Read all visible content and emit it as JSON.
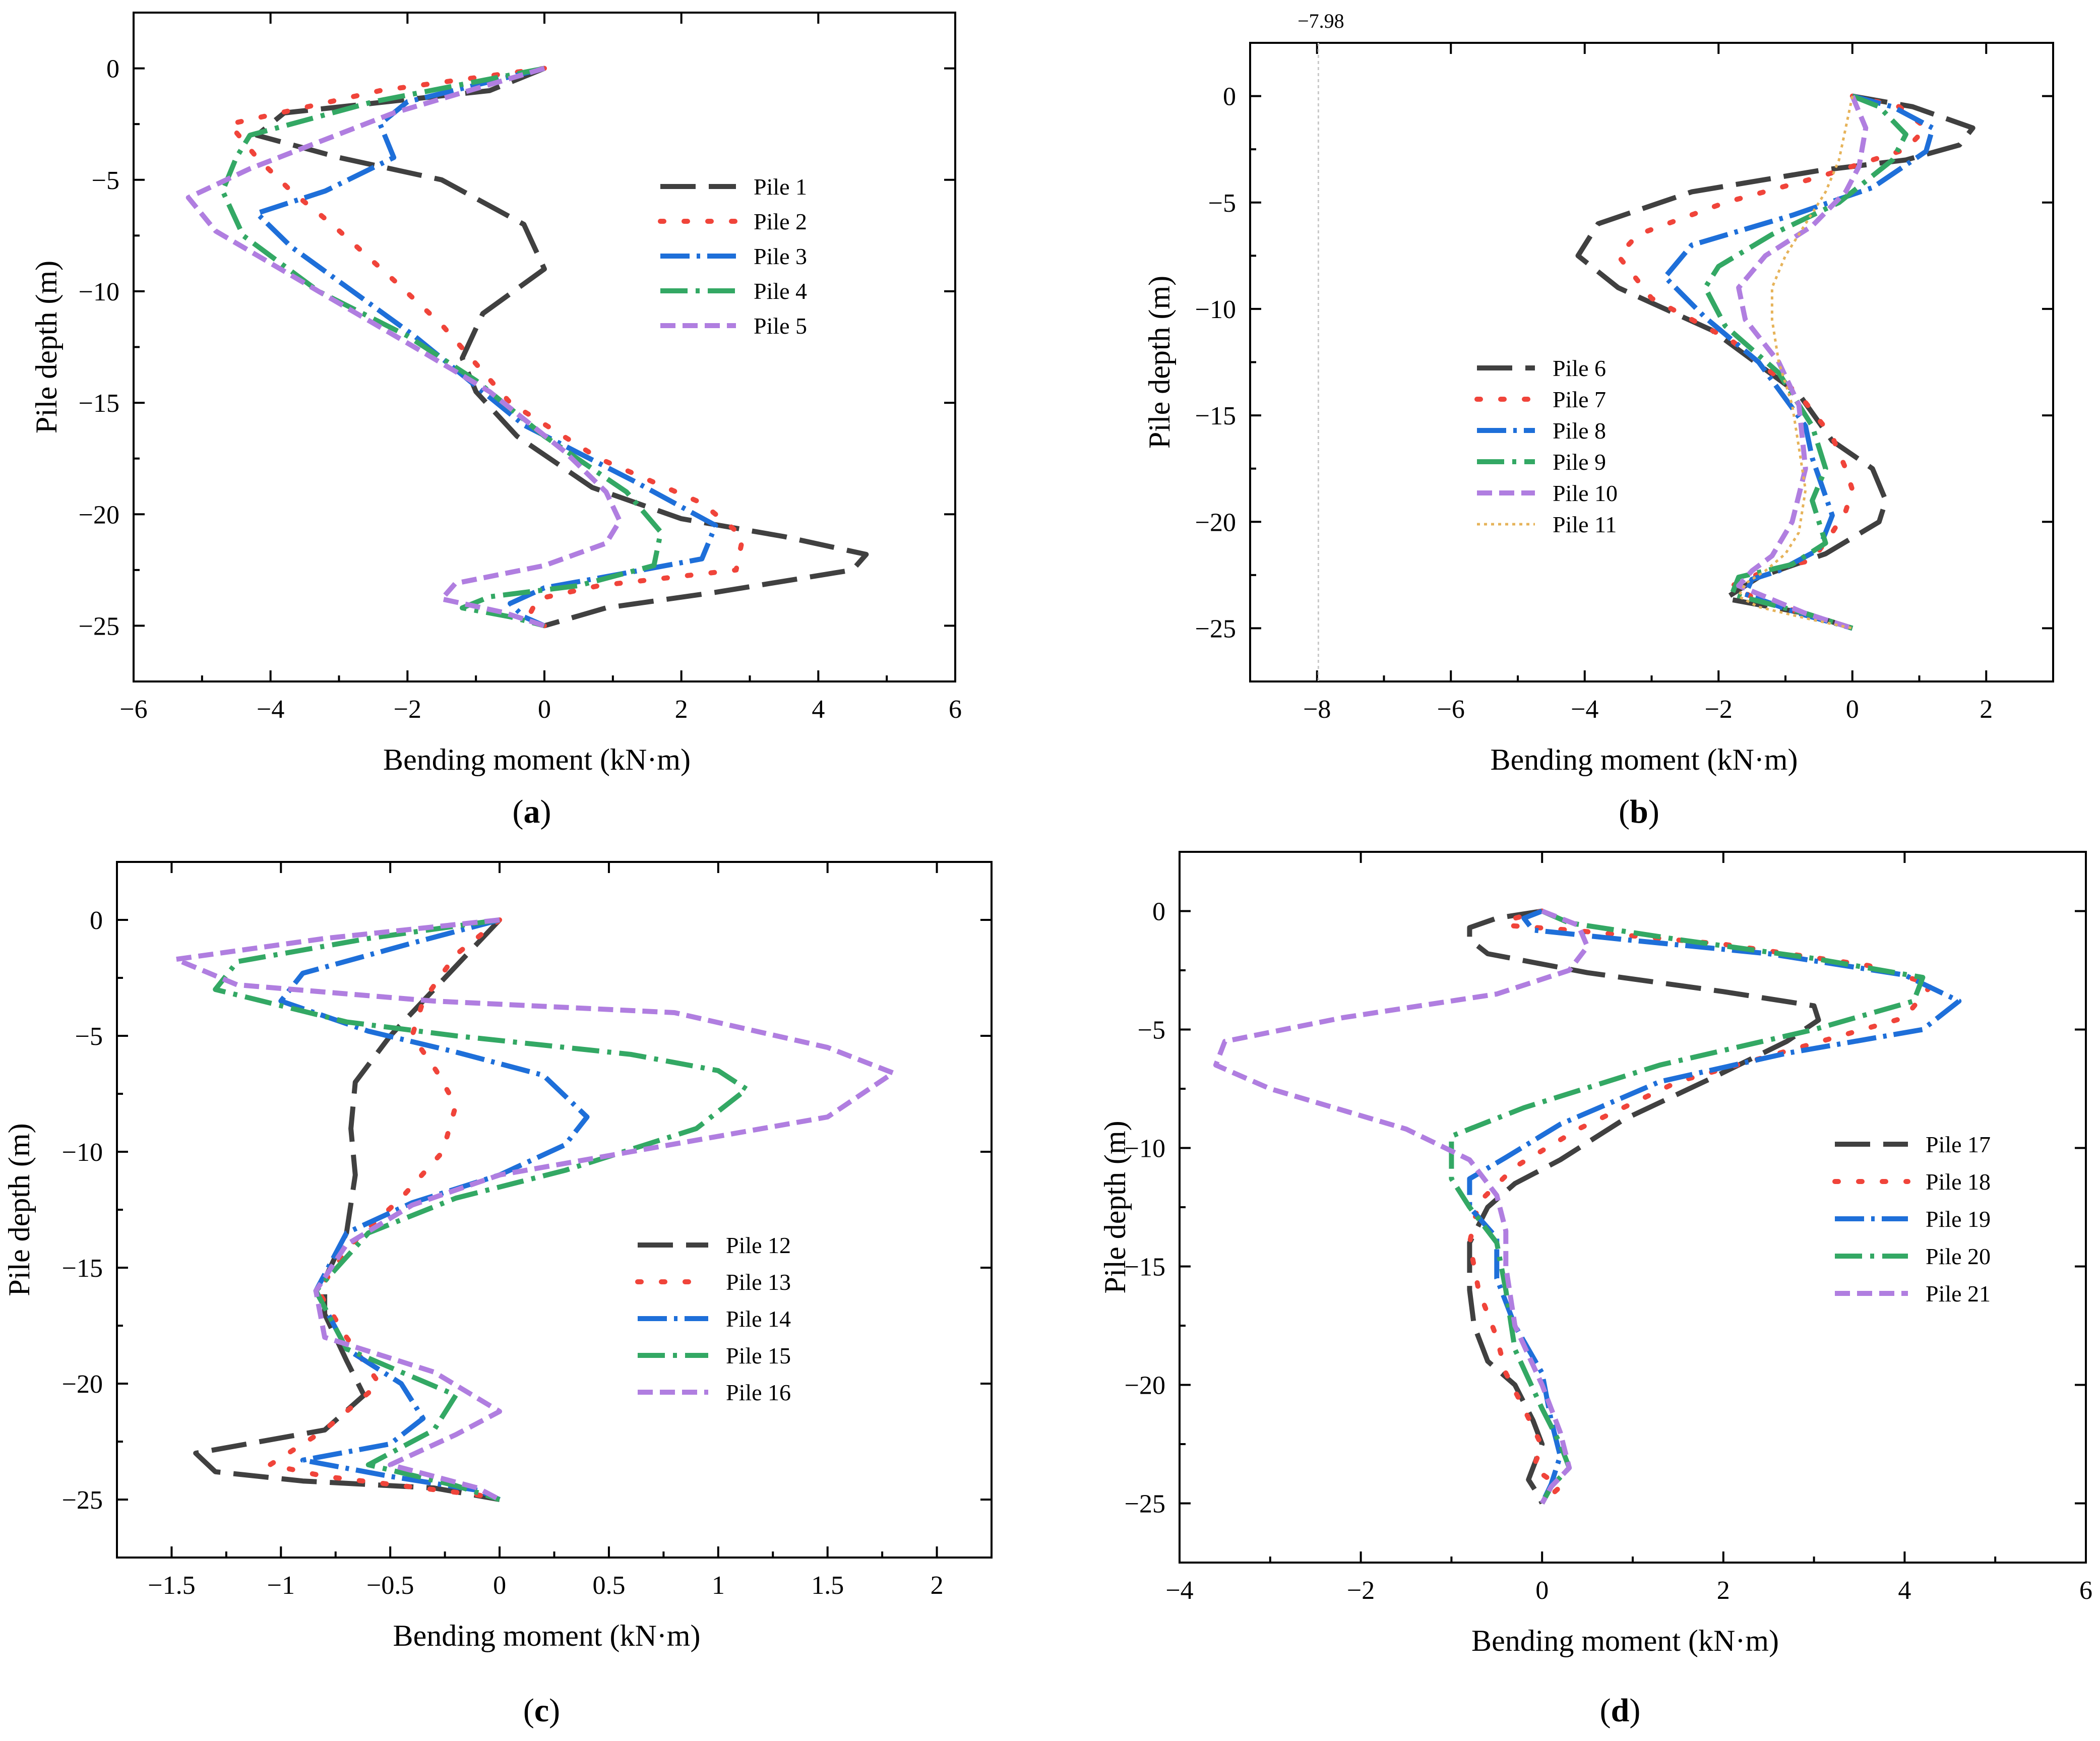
{
  "figure": {
    "captions": [
      "a",
      "b",
      "c",
      "d"
    ]
  },
  "styles": {
    "colors": [
      "#404040",
      "#f0443a",
      "#1e6fd9",
      "#33a864",
      "#b07ee0",
      "#e6b35a"
    ],
    "dashes": [
      "70,26",
      "7,40",
      "58,14,7,14",
      "54,16,8,16",
      "30,14",
      "6,8"
    ]
  },
  "chart_data": [
    {
      "type": "line",
      "panel": "a",
      "title": "",
      "xlabel": "Bending moment (kN·m)",
      "ylabel": "Pile depth (m)",
      "xlim": [
        -6,
        6
      ],
      "ylim": [
        -27.5,
        2.5
      ],
      "xticks": [
        -6,
        -4,
        -2,
        0,
        2,
        4,
        6
      ],
      "yticks": [
        0,
        -5,
        -10,
        -15,
        -20,
        -25
      ],
      "legend_position": "upper-center",
      "series": [
        {
          "name": "Pile 1",
          "x": [
            0,
            -0.8,
            -3.8,
            -4.2,
            -3.0,
            -1.5,
            -0.3,
            0,
            -0.9,
            -1.2,
            -1.0,
            -0.4,
            0.7,
            2.0,
            3.5,
            4.7,
            4.5,
            2.5,
            0.9,
            0
          ],
          "y": [
            0,
            -1,
            -2,
            -3,
            -4,
            -5,
            -7,
            -9,
            -11,
            -13,
            -14.5,
            -16.5,
            -18.8,
            -20.2,
            -21,
            -21.8,
            -22.5,
            -23.5,
            -24.2,
            -25
          ]
        },
        {
          "name": "Pile 2",
          "x": [
            0,
            -2.4,
            -4.6,
            -4.2,
            -3.7,
            -3.1,
            -2.2,
            -1.5,
            -0.5,
            0.8,
            2.3,
            2.9,
            2.8,
            0.8,
            -0.1,
            -0.2,
            0
          ],
          "y": [
            0,
            -1,
            -2.5,
            -4,
            -5.5,
            -7,
            -9.5,
            -11.5,
            -15,
            -17.5,
            -19.5,
            -21,
            -22.5,
            -23.2,
            -23.8,
            -24.4,
            -25
          ]
        },
        {
          "name": "Pile 3",
          "x": [
            0,
            -2.0,
            -2.4,
            -2.2,
            -3.2,
            -4.2,
            -3.7,
            -2.8,
            -1.9,
            -0.3,
            1.3,
            2.5,
            2.3,
            0.9,
            0,
            -0.5,
            -0.3,
            0
          ],
          "y": [
            0,
            -1.5,
            -2.5,
            -4,
            -5.5,
            -6.5,
            -8,
            -10,
            -12,
            -16,
            -18.5,
            -20.5,
            -22,
            -22.8,
            -23.3,
            -24,
            -24.6,
            -25
          ]
        },
        {
          "name": "Pile 4",
          "x": [
            0,
            -2.5,
            -4.3,
            -4.5,
            -4.7,
            -4.4,
            -3.3,
            -2.0,
            -1.0,
            0,
            1.2,
            1.7,
            1.6,
            0.5,
            -0.8,
            -1.2,
            -0.5,
            0
          ],
          "y": [
            0,
            -1.5,
            -3,
            -4,
            -5.5,
            -7.5,
            -10,
            -12,
            -14,
            -16.5,
            -19,
            -20.8,
            -22.3,
            -23.2,
            -23.7,
            -24.2,
            -24.6,
            -25
          ]
        },
        {
          "name": "Pile 5",
          "x": [
            0,
            -2.2,
            -4.3,
            -5.2,
            -4.8,
            -3.3,
            -1.9,
            -0.8,
            0.3,
            0.9,
            1.1,
            0.9,
            0,
            -1.3,
            -1.5,
            -0.6,
            0
          ],
          "y": [
            0,
            -2,
            -4.5,
            -5.8,
            -7.3,
            -10,
            -12.5,
            -14.5,
            -17.2,
            -19,
            -20.3,
            -21.3,
            -22.3,
            -23.1,
            -23.8,
            -24.4,
            -25
          ]
        }
      ]
    },
    {
      "type": "line",
      "panel": "b",
      "title": "",
      "xlabel": "Bending moment (kN·m)",
      "ylabel": "Pile depth (m)",
      "xlim": [
        -9,
        3
      ],
      "ylim": [
        -27.5,
        2.5
      ],
      "xticks": [
        -8,
        -6,
        -4,
        -2,
        0,
        2
      ],
      "yticks": [
        0,
        -5,
        -10,
        -15,
        -20,
        -25
      ],
      "legend_position": "center-left",
      "annotation": {
        "text": "−7.98",
        "x": -7.98
      },
      "series": [
        {
          "name": "Pile 6",
          "x": [
            0,
            0.9,
            1.8,
            1.6,
            0.8,
            -0.5,
            -2.4,
            -3.8,
            -4.1,
            -3.5,
            -2.1,
            -0.8,
            -0.3,
            0.3,
            0.5,
            0.4,
            -0.4,
            -1.4,
            -1.9,
            -0.7,
            0
          ],
          "y": [
            0,
            -0.5,
            -1.5,
            -2.3,
            -3,
            -3.5,
            -4.5,
            -6,
            -7.5,
            -9,
            -11,
            -14,
            -16.2,
            -17.5,
            -19,
            -20,
            -21.5,
            -22.6,
            -23.6,
            -24.3,
            -25
          ]
        },
        {
          "name": "Pile 7",
          "x": [
            0,
            0.7,
            1.1,
            0.8,
            -0.5,
            -1.9,
            -3.2,
            -3.5,
            -3.0,
            -1.8,
            -0.8,
            -0.3,
            -0.1,
            0,
            -0.1,
            -0.3,
            -0.6,
            -1.3,
            -1.8,
            -1.4,
            -0.6,
            0
          ],
          "y": [
            0,
            -0.5,
            -1.5,
            -2.5,
            -3.8,
            -5,
            -6.5,
            -7.5,
            -9.5,
            -11.5,
            -14,
            -16,
            -17.5,
            -18.5,
            -19.5,
            -20.5,
            -21.8,
            -22.3,
            -23,
            -23.7,
            -24.4,
            -25
          ]
        },
        {
          "name": "Pile 8",
          "x": [
            0,
            0.6,
            1.2,
            1.1,
            0.3,
            -0.9,
            -2.4,
            -2.8,
            -2.2,
            -1.4,
            -0.7,
            -0.6,
            -0.3,
            -0.5,
            -1.1,
            -1.5,
            -1.6,
            -0.8,
            0
          ],
          "y": [
            0,
            -0.5,
            -1.5,
            -2.6,
            -4.3,
            -5.6,
            -7,
            -8.5,
            -10.4,
            -12.5,
            -15.5,
            -17,
            -19.7,
            -21.3,
            -22.3,
            -22.7,
            -23.4,
            -24.3,
            -25
          ]
        },
        {
          "name": "Pile 9",
          "x": [
            0,
            0.4,
            0.8,
            0.6,
            -0.2,
            -1.2,
            -2.0,
            -2.2,
            -1.9,
            -1.1,
            -0.6,
            -0.4,
            -0.6,
            -0.4,
            -0.9,
            -1.7,
            -1.8,
            -0.7,
            0
          ],
          "y": [
            0,
            -0.5,
            -1.8,
            -3,
            -5,
            -6.5,
            -8,
            -9,
            -10.8,
            -13,
            -15.5,
            -17.5,
            -19,
            -21,
            -22,
            -22.6,
            -23.4,
            -24.3,
            -25
          ]
        },
        {
          "name": "Pile 10",
          "x": [
            0,
            0.2,
            0.1,
            -0.1,
            -0.6,
            -1.3,
            -1.7,
            -1.6,
            -1.1,
            -0.8,
            -0.7,
            -0.9,
            -1.2,
            -1.5,
            -1.7,
            -0.7,
            0
          ],
          "y": [
            0,
            -1.5,
            -3.3,
            -4.5,
            -6.1,
            -7.5,
            -9,
            -10.5,
            -12.5,
            -14.5,
            -17.5,
            -20,
            -21.6,
            -22.3,
            -23,
            -24.3,
            -25
          ]
        },
        {
          "name": "Pile 11",
          "x": [
            0,
            -0.1,
            -0.2,
            -0.4,
            -0.7,
            -1.0,
            -1.2,
            -1.2,
            -1.1,
            -0.9,
            -0.8,
            -0.7,
            -0.8,
            -1.0,
            -1.3,
            -1.6,
            -1.7,
            -1.4,
            -0.6,
            0
          ],
          "y": [
            0,
            -1.5,
            -3,
            -4.5,
            -6,
            -7.5,
            -9,
            -10.5,
            -12.5,
            -14.5,
            -16.5,
            -18.5,
            -20.5,
            -21.5,
            -22.3,
            -22.9,
            -23.5,
            -24,
            -24.6,
            -25
          ]
        }
      ]
    },
    {
      "type": "line",
      "panel": "c",
      "title": "",
      "xlabel": "Bending moment (kN·m)",
      "ylabel": "Pile depth (m)",
      "xlim": [
        -1.75,
        2.25
      ],
      "ylim": [
        -27.5,
        2.5
      ],
      "xticks": [
        -1.5,
        -1.0,
        -0.5,
        0.0,
        0.5,
        1.0,
        1.5,
        2.0
      ],
      "yticks": [
        0,
        -5,
        -10,
        -15,
        -20,
        -25
      ],
      "legend_position": "lower-right",
      "series": [
        {
          "name": "Pile 12",
          "x": [
            0,
            -0.1,
            -0.3,
            -0.5,
            -0.66,
            -0.68,
            -0.66,
            -0.7,
            -0.8,
            -0.8,
            -0.7,
            -0.62,
            -0.8,
            -1.39,
            -1.3,
            -0.9,
            -0.3,
            0
          ],
          "y": [
            0,
            -1,
            -3,
            -5,
            -7,
            -9,
            -11,
            -13.5,
            -15.5,
            -17,
            -19,
            -20.5,
            -22,
            -23,
            -23.8,
            -24.2,
            -24.5,
            -25
          ]
        },
        {
          "name": "Pile 13",
          "x": [
            0,
            -0.2,
            -0.35,
            -0.4,
            -0.29,
            -0.2,
            -0.26,
            -0.45,
            -0.68,
            -0.83,
            -0.7,
            -0.55,
            -0.8,
            -1.05,
            -0.8,
            -0.45,
            -0.1,
            0
          ],
          "y": [
            0,
            -1.5,
            -3.5,
            -5,
            -6.5,
            -8,
            -10,
            -12,
            -14,
            -16,
            -18,
            -20,
            -22,
            -23.5,
            -24,
            -24.4,
            -24.8,
            -25
          ]
        },
        {
          "name": "Pile 14",
          "x": [
            0,
            -0.4,
            -0.9,
            -1.0,
            -0.6,
            -0.2,
            0.2,
            0.4,
            0.3,
            0.0,
            -0.4,
            -0.7,
            -0.84,
            -0.7,
            -0.45,
            -0.35,
            -0.5,
            -0.9,
            -0.5,
            -0.1,
            0
          ],
          "y": [
            0,
            -1,
            -2.3,
            -3.5,
            -4.8,
            -5.7,
            -6.7,
            -8.5,
            -9.7,
            -11,
            -12.2,
            -13.5,
            -16,
            -18.5,
            -20,
            -21.5,
            -22.6,
            -23.3,
            -24,
            -24.6,
            -25
          ]
        },
        {
          "name": "Pile 15",
          "x": [
            0,
            -0.6,
            -1.2,
            -1.3,
            -0.7,
            -0.2,
            0.6,
            1.0,
            1.13,
            0.9,
            0.3,
            -0.2,
            -0.6,
            -0.84,
            -0.7,
            -0.2,
            -0.3,
            -0.6,
            -0.2,
            0
          ],
          "y": [
            0,
            -0.8,
            -1.8,
            -3,
            -4.4,
            -5,
            -5.8,
            -6.5,
            -7.3,
            -9,
            -10.8,
            -12,
            -13.5,
            -16,
            -18.5,
            -20.5,
            -22,
            -23.5,
            -24.4,
            -25
          ]
        },
        {
          "name": "Pile 16",
          "x": [
            0,
            -0.8,
            -1.48,
            -1.2,
            -0.3,
            0.8,
            1.5,
            1.8,
            1.5,
            0.6,
            0,
            -0.4,
            -0.7,
            -0.84,
            -0.8,
            -0.3,
            0,
            -0.2,
            -0.5,
            -0.1,
            0
          ],
          "y": [
            0,
            -0.8,
            -1.7,
            -2.8,
            -3.5,
            -4,
            -5.5,
            -6.6,
            -8.5,
            -10,
            -11,
            -12.3,
            -14,
            -16,
            -18,
            -19.5,
            -21.2,
            -22.2,
            -23.5,
            -24.5,
            -25
          ]
        }
      ]
    },
    {
      "type": "line",
      "panel": "d",
      "title": "",
      "xlabel": "Bending moment (kN·m)",
      "ylabel": "Pile depth (m)",
      "xlim": [
        -4,
        6
      ],
      "ylim": [
        -27.5,
        2.5
      ],
      "xticks": [
        -4,
        -2,
        0,
        2,
        4,
        6
      ],
      "yticks": [
        0,
        -5,
        -10,
        -15,
        -20,
        -25
      ],
      "legend_position": "center-right",
      "series": [
        {
          "name": "Pile 17",
          "x": [
            0,
            -0.5,
            -0.8,
            -0.8,
            -0.6,
            0.5,
            2.0,
            3.0,
            3.05,
            2.7,
            1.9,
            0.9,
            0.2,
            -0.3,
            -0.6,
            -0.8,
            -0.8,
            -0.75,
            -0.6,
            -0.3,
            -0.1,
            0,
            -0.15,
            -0.05,
            0
          ],
          "y": [
            0,
            -0.3,
            -0.7,
            -1.2,
            -1.8,
            -2.6,
            -3.4,
            -4,
            -4.6,
            -5.5,
            -7,
            -8.8,
            -10.5,
            -11.5,
            -12.5,
            -14,
            -16,
            -17.5,
            -19,
            -20,
            -21.5,
            -22.5,
            -24,
            -24.6,
            -25
          ]
        },
        {
          "name": "Pile 18",
          "x": [
            0,
            -0.3,
            -0.4,
            0.3,
            2.0,
            3.6,
            4.3,
            4.0,
            2.8,
            1.5,
            0.4,
            -0.3,
            -0.7,
            -0.8,
            -0.7,
            -0.5,
            -0.4,
            -0.2,
            0,
            -0.1,
            0.2,
            0
          ],
          "y": [
            0,
            -0.3,
            -0.6,
            -0.8,
            -1.4,
            -2.3,
            -3.1,
            -4.5,
            -5.8,
            -7.2,
            -9.2,
            -10.8,
            -12.3,
            -14,
            -16,
            -18,
            -19.5,
            -21,
            -22.6,
            -23.5,
            -24.3,
            -25
          ]
        },
        {
          "name": "Pile 19",
          "x": [
            0,
            -0.2,
            -0.1,
            0.9,
            2.5,
            4.0,
            4.6,
            4.2,
            2.7,
            1.3,
            0.2,
            -0.4,
            -0.8,
            -0.8,
            -0.5,
            -0.5,
            -0.3,
            0,
            0.1,
            0.2,
            0.1,
            0
          ],
          "y": [
            0,
            -0.3,
            -0.8,
            -1.2,
            -1.8,
            -2.7,
            -3.8,
            -5,
            -6,
            -7.2,
            -9,
            -10.4,
            -11.3,
            -12.5,
            -13.8,
            -15.5,
            -17.5,
            -19.5,
            -21.5,
            -23,
            -24.2,
            -25
          ]
        },
        {
          "name": "Pile 20",
          "x": [
            0,
            0.3,
            1.5,
            3.0,
            4.2,
            4.1,
            3.0,
            1.3,
            -0.2,
            -1.0,
            -1.0,
            -0.8,
            -0.5,
            -0.4,
            -0.3,
            0,
            0.2,
            0.3,
            0.1,
            0
          ],
          "y": [
            0,
            -0.5,
            -1.2,
            -2,
            -2.8,
            -3.8,
            -5,
            -6.5,
            -8.3,
            -9.5,
            -11.3,
            -12.5,
            -14,
            -16,
            -18.5,
            -21,
            -22.5,
            -23.5,
            -24.3,
            -25
          ]
        },
        {
          "name": "Pile 21",
          "x": [
            0,
            0.4,
            0.5,
            0.3,
            -0.5,
            -2.2,
            -3.5,
            -3.6,
            -3.0,
            -1.5,
            -0.8,
            -0.5,
            -0.4,
            -0.4,
            -0.3,
            0,
            0.2,
            0.3,
            0.1,
            0
          ],
          "y": [
            0,
            -0.6,
            -1.5,
            -2.5,
            -3.5,
            -4.5,
            -5.5,
            -6.5,
            -7.5,
            -9.2,
            -10.5,
            -12,
            -13.5,
            -15,
            -17.5,
            -20,
            -22,
            -23.5,
            -24.3,
            -25
          ]
        }
      ]
    }
  ]
}
